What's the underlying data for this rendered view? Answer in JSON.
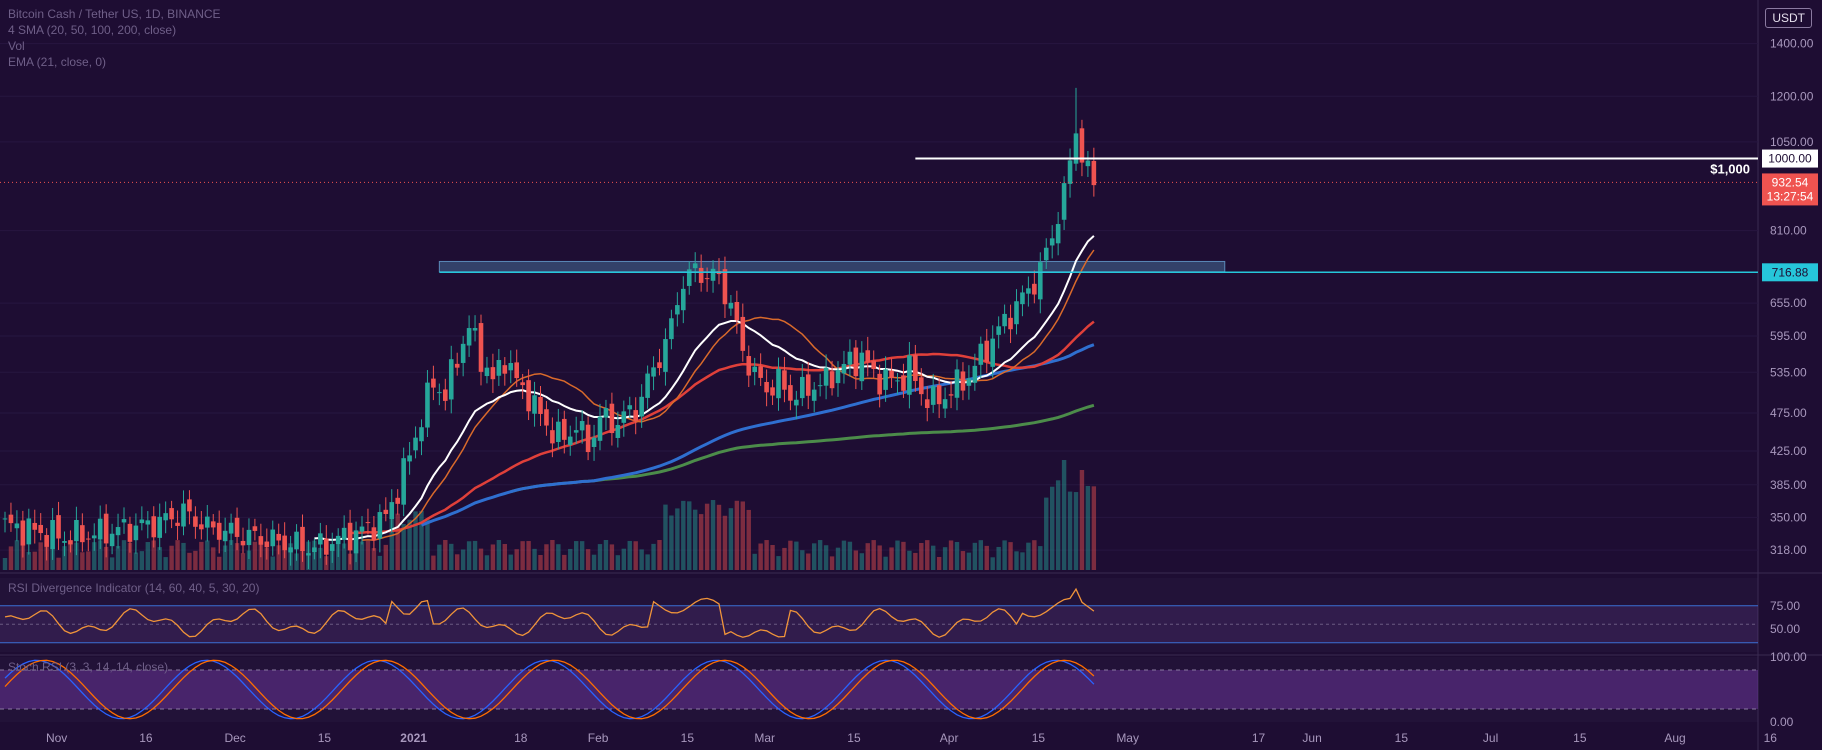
{
  "header": {
    "symbol": "Bitcoin Cash / Tether US, 1D, BINANCE",
    "ma_legend": "4 SMA (20, 50, 100, 200, close)",
    "volume_legend": "Vol",
    "ema_legend": "EMA (21, close, 0)",
    "rsi_legend": "RSI Divergence Indicator (14, 60, 40, 5, 30, 20)",
    "stoch_legend": "Stoch RSI (3, 3, 14, 14, close)",
    "currency": "USDT"
  },
  "colors": {
    "background": "#1e0d33",
    "up": "#26a69a",
    "down": "#ef5350",
    "ema": "#ffffff",
    "sma20": "#d96a2b",
    "sma50": "#e0403a",
    "sma100": "#2f6fd0",
    "sma200": "#4c8c4a",
    "resistance": "#ffffff",
    "support": "#26c6da",
    "price_tag": "#ef5350"
  },
  "chart_data": [
    {
      "type": "candlestick",
      "panel": "price",
      "y_ticks": [
        318,
        350,
        385,
        425,
        475,
        535,
        595,
        655,
        810,
        1050,
        1200,
        1400
      ],
      "x_ticks": [
        "Nov",
        "16",
        "Dec",
        "15",
        "2021",
        "18",
        "Feb",
        "15",
        "Mar",
        "15",
        "Apr",
        "15",
        "May",
        "17",
        "Jun",
        "15",
        "Jul",
        "15",
        "Aug",
        "16"
      ],
      "levels": [
        {
          "label": "$1,000",
          "value": 1000,
          "tag": "1000.00"
        },
        {
          "label": "",
          "value": 716.88,
          "tag": "716.88"
        }
      ],
      "current_price": {
        "value": "932.54",
        "countdown": "13:27:54"
      },
      "resistance_zone": [
        718,
        740
      ],
      "ylim": [
        300,
        1500
      ],
      "scale": "log"
    },
    {
      "type": "line",
      "panel": "rsi",
      "y_ticks": [
        "75.00",
        "50.00"
      ],
      "bands": [
        70,
        30
      ]
    },
    {
      "type": "line",
      "panel": "stoch_rsi",
      "y_ticks": [
        "100.00",
        "0.00"
      ],
      "bands": [
        80,
        20
      ]
    }
  ]
}
